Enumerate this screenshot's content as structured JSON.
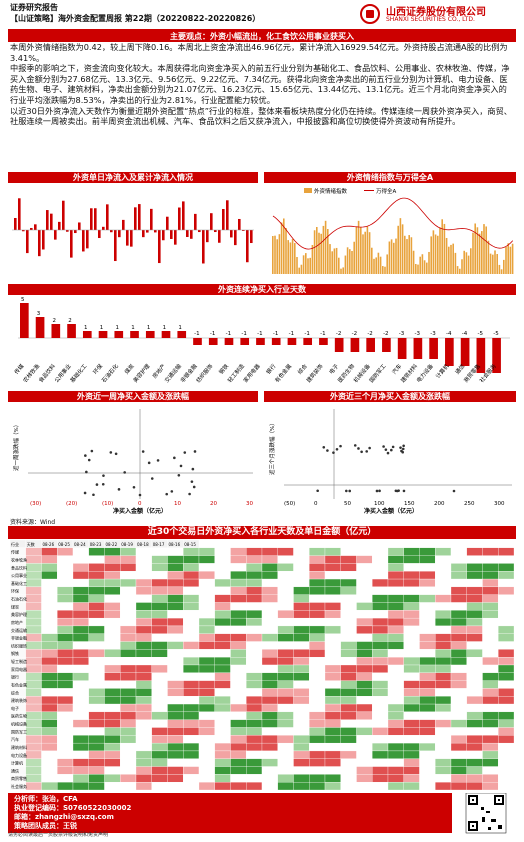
{
  "header": {
    "category": "证券研究报告",
    "title": "【山证策略】海外资金配置周报 第22期（20220822-20220826）",
    "brand_cn": "山西证券股份有限公司",
    "brand_en": "SHANXI SECURITIES CO., LTD."
  },
  "section_main": "主要观点：外资小幅流出，化工食饮公用事业获买入",
  "paragraphs": [
    "本周外资情绪指数为0.42，较上周下降0.16。本周北上资金净流出46.96亿元，累计净流入16929.54亿元。外资持股占流通A股的比例为3.41%。",
    "中报季的影响之下，资金流向变化较大。本周获得北向资金净买入的前五行业分别为基础化工、食品饮料、公用事业、农林牧渔、传媒，净买入金额分别为27.68亿元、13.3亿元、9.56亿元、9.22亿元、7.34亿元。获得北向资金净卖出的前五行业分别为计算机、电力设备、医药生物、电子、建筑材料，净卖出金额分别为21.07亿元、16.23亿元、15.65亿元、13.44亿元、13.1亿元。近三个月北向资金净买入的行业平均涨跌幅为8.53%，净卖出的行业为2.81%，行业配置能力较优。",
    "以近30日外资净流入天数作为衡量近期外资配置“热点”行业的标准，整体来看板块热度分化仍在持续。传媒连续一周获外资净买入，商贸、社服连续一周被卖出。前半周资金流出机械、汽车、食品饮料之后又获净流入，中报披露和高位切换使得外资波动有所提升。"
  ],
  "chart_titles": {
    "daily_flow": "外资单日净流入及累计净流入情况",
    "sentiment": "外资情绪指数与万得全A",
    "streak": "外资连续净买入行业天数",
    "week_scatter": "外资近一周净买入金额及涨跌幅",
    "month_scatter": "外资近三个月净买入金额及涨跌幅",
    "table": "近30个交易日外资净买入各行业天数及单日金额（亿元）"
  },
  "sentiment_legend": [
    "外资情绪指数",
    "万得全A"
  ],
  "scatter_labels": {
    "week_x": "净买入金额（亿元）",
    "week_y": "近一周涨跌幅（%）",
    "month_x": "净买入金额（亿元）",
    "month_y": "近三个月涨跌幅（%）"
  },
  "week_xticks": [
    "(30)",
    "(20)",
    "(10)",
    "0",
    "10",
    "20",
    "30"
  ],
  "month_xticks": [
    "(50)",
    "0",
    "50",
    "100",
    "150",
    "200",
    "250",
    "300"
  ],
  "source": "资料来源：Wind",
  "contact": {
    "analyst": "分析师：张治，CFA",
    "license": "执业登记编码：S0760522030002",
    "analyst_email": "邮箱：zhangzhi@sxzq.com",
    "team": "策略团队成员：王锐",
    "team_email": "邮箱：wangrui1@sxzq.com"
  },
  "chart_data": [
    {
      "type": "bar",
      "title": "外资连续净买入行业天数",
      "categories": [
        "传媒",
        "农林牧渔",
        "食品饮料",
        "公用事业",
        "基础化工",
        "环保",
        "石油石化",
        "煤炭",
        "美容护理",
        "房地产",
        "交通运输",
        "非银金融",
        "纺织服饰",
        "钢铁",
        "轻工制造",
        "家用电器",
        "银行",
        "有色金属",
        "综合",
        "建筑装饰",
        "电子",
        "医药生物",
        "机械设备",
        "国防军工",
        "汽车",
        "建筑材料",
        "电力设备",
        "计算机",
        "通信",
        "商贸零售",
        "社会服务"
      ],
      "values": [
        5,
        3,
        2,
        2,
        1,
        1,
        1,
        1,
        1,
        1,
        1,
        -1,
        -1,
        -1,
        -1,
        -1,
        -1,
        -1,
        -1,
        -1,
        -2,
        -2,
        -2,
        -2,
        -3,
        -3,
        -3,
        -4,
        -4,
        -5,
        -5
      ]
    }
  ],
  "table_headers": [
    "行业",
    "天数",
    "08-26",
    "08-25",
    "08-24",
    "08-23",
    "08-22",
    "08-19",
    "08-18",
    "08-17",
    "08-16",
    "08-15"
  ],
  "disclaimer": "请务必阅读最后一页股票评级说明和免责声明"
}
